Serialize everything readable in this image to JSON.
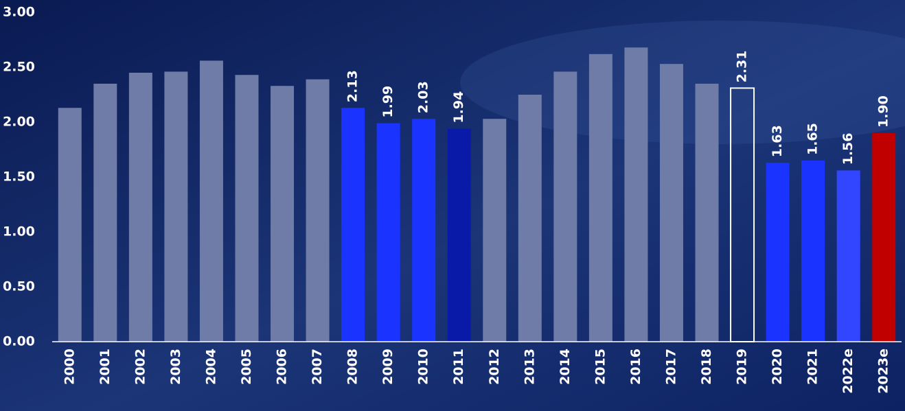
{
  "chart_data": {
    "type": "bar",
    "categories": [
      "2000",
      "2001",
      "2002",
      "2003",
      "2004",
      "2005",
      "2006",
      "2007",
      "2008",
      "2009",
      "2010",
      "2011",
      "2012",
      "2013",
      "2014",
      "2015",
      "2016",
      "2017",
      "2018",
      "2019",
      "2020",
      "2021",
      "2022e",
      "2023e"
    ],
    "values": [
      2.13,
      2.35,
      2.45,
      2.46,
      2.56,
      2.43,
      2.33,
      2.39,
      2.13,
      1.99,
      2.03,
      1.94,
      2.03,
      2.25,
      2.46,
      2.62,
      2.68,
      2.53,
      2.35,
      2.31,
      1.63,
      1.65,
      1.56,
      1.9
    ],
    "value_labels": [
      null,
      null,
      null,
      null,
      null,
      null,
      null,
      null,
      "2.13",
      "1.99",
      "2.03",
      "1.94",
      null,
      null,
      null,
      null,
      null,
      null,
      null,
      "2.31",
      "1.63",
      "1.65",
      "1.56",
      "1.90"
    ],
    "colors": [
      "#6f7ca8",
      "#6f7ca8",
      "#6f7ca8",
      "#6f7ca8",
      "#6f7ca8",
      "#6f7ca8",
      "#6f7ca8",
      "#6f7ca8",
      "#1a33ff",
      "#1a33ff",
      "#1a33ff",
      "#0a1aa8",
      "#6f7ca8",
      "#6f7ca8",
      "#6f7ca8",
      "#6f7ca8",
      "#6f7ca8",
      "#6f7ca8",
      "#6f7ca8",
      "none",
      "#1a33ff",
      "#1a33ff",
      "#3346ff",
      "#c00000"
    ],
    "edge_colors": [
      null,
      null,
      null,
      null,
      null,
      null,
      null,
      null,
      null,
      null,
      null,
      null,
      null,
      null,
      null,
      null,
      null,
      null,
      null,
      "#ffffff",
      null,
      null,
      null,
      null
    ],
    "ylim": [
      0,
      3
    ],
    "yticks": [
      {
        "value": 0,
        "label": "0.00"
      },
      {
        "value": 0.5,
        "label": "0.50"
      },
      {
        "value": 1,
        "label": "1.00"
      },
      {
        "value": 1.5,
        "label": "1.50"
      },
      {
        "value": 2,
        "label": "2.00"
      },
      {
        "value": 2.5,
        "label": "2.50"
      },
      {
        "value": 3,
        "label": "3.00"
      }
    ],
    "grid": false
  }
}
